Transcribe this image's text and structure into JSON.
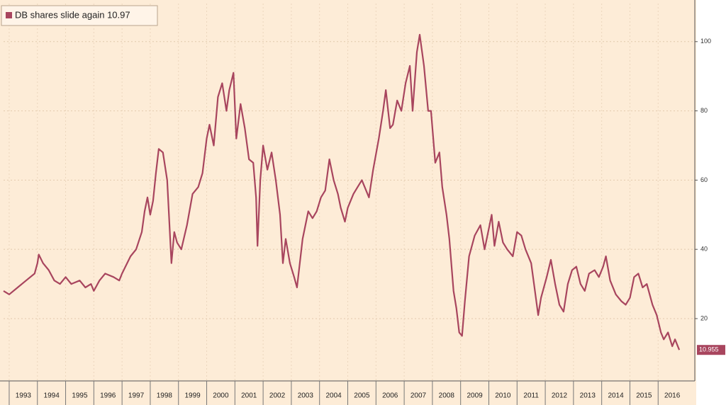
{
  "chart_data": {
    "type": "line",
    "x": [
      1992.8,
      1993.0,
      1993.3,
      1993.6,
      1993.9,
      1994.0,
      1994.05,
      1994.2,
      1994.4,
      1994.6,
      1994.8,
      1995.0,
      1995.2,
      1995.5,
      1995.7,
      1995.9,
      1996.0,
      1996.2,
      1996.4,
      1996.7,
      1996.9,
      1997.0,
      1997.3,
      1997.5,
      1997.7,
      1997.8,
      1997.9,
      1998.0,
      1998.1,
      1998.2,
      1998.3,
      1998.45,
      1998.6,
      1998.75,
      1998.85,
      1998.95,
      1999.1,
      1999.3,
      1999.5,
      1999.7,
      1999.85,
      2000.0,
      2000.1,
      2000.25,
      2000.4,
      2000.55,
      2000.7,
      2000.8,
      2000.95,
      2001.05,
      2001.2,
      2001.35,
      2001.5,
      2001.65,
      2001.75,
      2001.8,
      2001.9,
      2002.0,
      2002.15,
      2002.3,
      2002.45,
      2002.6,
      2002.7,
      2002.8,
      2002.95,
      2003.1,
      2003.2,
      2003.4,
      2003.6,
      2003.75,
      2003.9,
      2004.05,
      2004.2,
      2004.35,
      2004.5,
      2004.65,
      2004.75,
      2004.9,
      2005.0,
      2005.2,
      2005.35,
      2005.5,
      2005.75,
      2005.9,
      2006.1,
      2006.25,
      2006.35,
      2006.5,
      2006.6,
      2006.75,
      2006.9,
      2007.05,
      2007.2,
      2007.3,
      2007.45,
      2007.55,
      2007.7,
      2007.85,
      2007.95,
      2008.1,
      2008.25,
      2008.35,
      2008.5,
      2008.6,
      2008.75,
      2008.85,
      2008.95,
      2009.05,
      2009.15,
      2009.3,
      2009.5,
      2009.7,
      2009.85,
      2010.0,
      2010.1,
      2010.2,
      2010.35,
      2010.5,
      2010.65,
      2010.85,
      2011.0,
      2011.15,
      2011.3,
      2011.5,
      2011.6,
      2011.75,
      2011.85,
      2012.05,
      2012.2,
      2012.35,
      2012.5,
      2012.65,
      2012.8,
      2012.95,
      2013.1,
      2013.25,
      2013.4,
      2013.55,
      2013.75,
      2013.9,
      2014.05,
      2014.15,
      2014.3,
      2014.5,
      2014.7,
      2014.85,
      2015.0,
      2015.15,
      2015.3,
      2015.45,
      2015.6,
      2015.8,
      2015.95,
      2016.1,
      2016.2,
      2016.35,
      2016.5,
      2016.6,
      2016.75
    ],
    "series": [
      {
        "name": "DB shares slide again 10.97",
        "color": "#a8455e",
        "values": [
          28,
          27,
          29,
          31,
          33,
          36,
          38.5,
          36,
          34,
          31,
          30,
          32,
          30,
          31,
          29,
          30,
          28,
          31,
          33,
          32,
          31,
          33,
          38,
          40,
          45,
          51,
          55,
          50,
          54,
          62,
          69,
          68,
          60,
          36,
          45,
          42,
          40,
          47,
          56,
          58,
          62,
          72,
          76,
          70,
          84,
          88,
          80,
          86,
          91,
          72,
          82,
          75,
          66,
          65,
          55,
          41,
          60,
          70,
          63,
          68,
          60,
          50,
          36,
          43,
          36,
          32,
          29,
          43,
          51,
          49,
          51,
          55,
          57,
          66,
          60,
          56,
          52,
          48,
          52,
          56,
          58,
          60,
          55,
          63,
          72,
          80,
          86,
          75,
          76,
          83,
          80,
          88,
          93,
          80,
          97,
          102,
          93,
          80,
          80,
          65,
          68,
          58,
          50,
          43,
          28,
          23,
          16,
          15,
          25,
          38,
          44,
          47,
          40,
          46,
          50,
          41,
          48,
          42,
          40,
          38,
          45,
          44,
          40,
          36,
          30,
          21,
          26,
          32,
          37,
          30,
          24,
          22,
          30,
          34,
          35,
          30,
          28,
          33,
          34,
          32,
          35,
          38,
          31,
          27,
          25,
          24,
          26,
          32,
          33,
          29,
          30,
          24,
          21,
          16,
          14,
          16,
          12,
          14,
          10.955
        ]
      }
    ],
    "xlim": [
      1992.8,
      2017.3
    ],
    "xticks": [
      1993,
      1994,
      1995,
      1996,
      1997,
      1998,
      1999,
      2000,
      2001,
      2002,
      2003,
      2004,
      2005,
      2006,
      2007,
      2008,
      2009,
      2010,
      2011,
      2012,
      2013,
      2014,
      2015,
      2016
    ],
    "ylim": [
      2,
      111
    ],
    "yticks": [
      20,
      40,
      60,
      80,
      100
    ],
    "grid": true
  }
}
